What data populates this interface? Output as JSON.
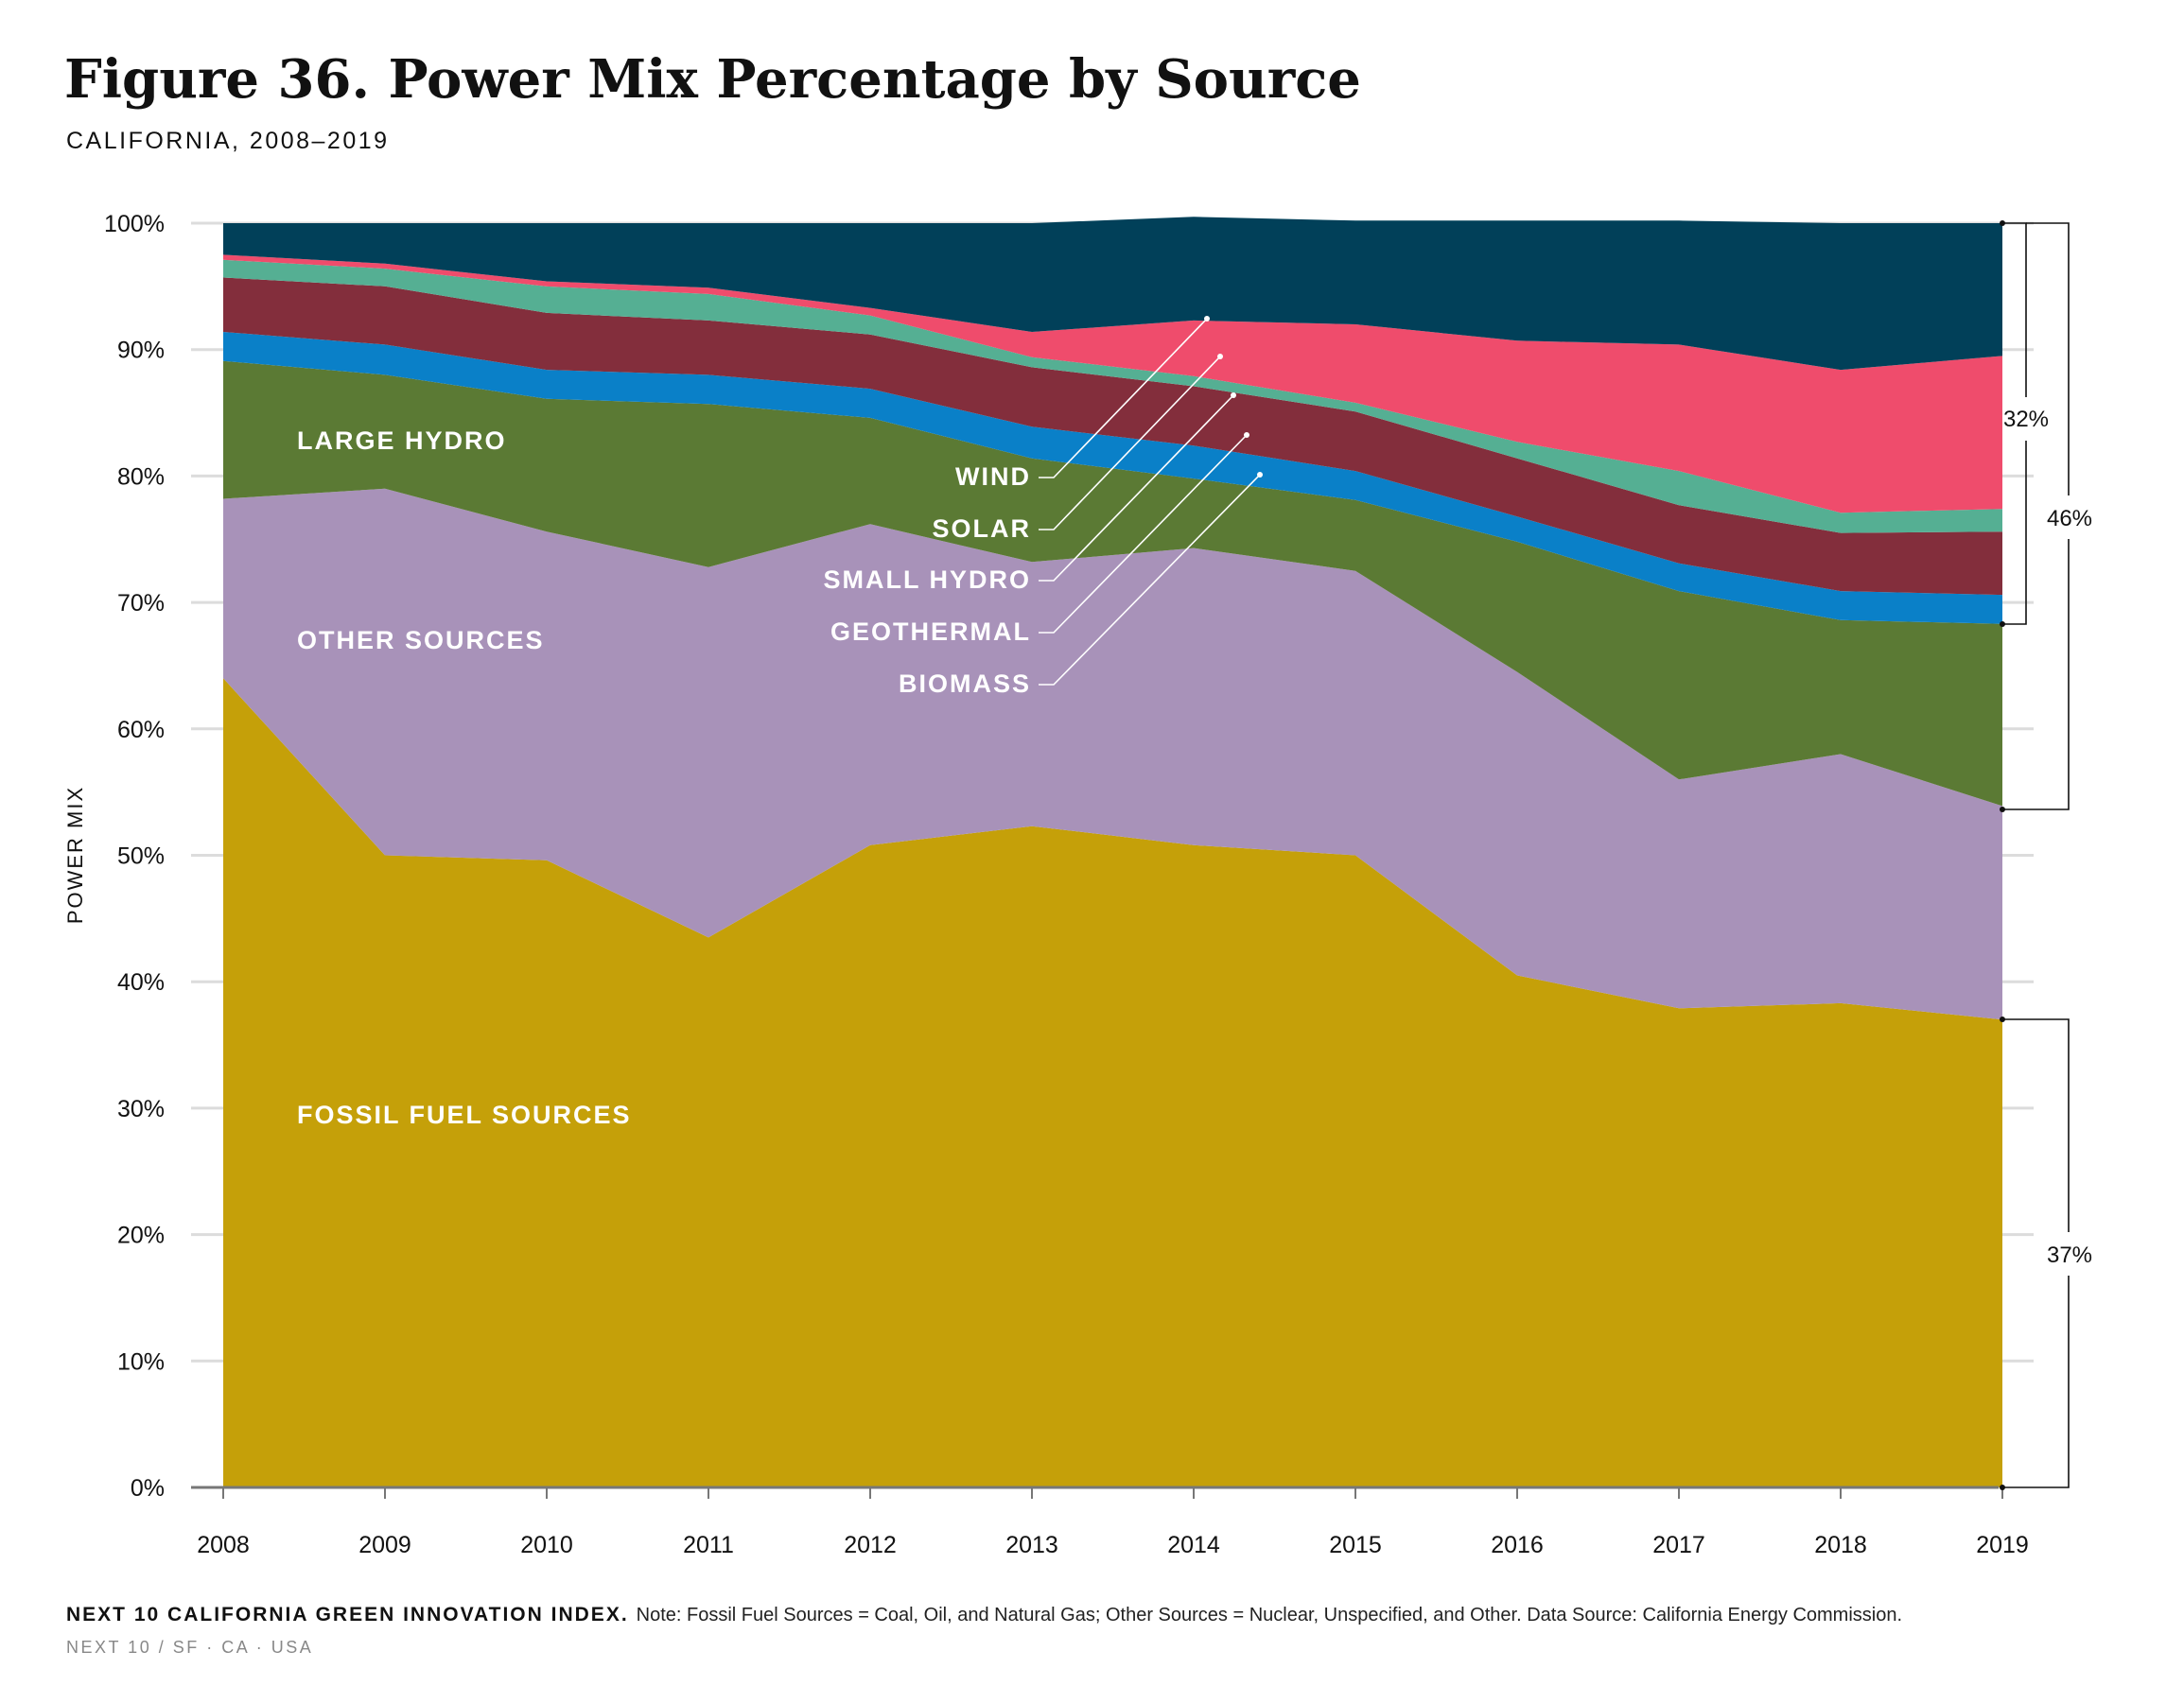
{
  "header": {
    "title": "Figure 36. Power Mix Percentage by Source",
    "subtitle": "CALIFORNIA, 2008–2019"
  },
  "footer": {
    "source_bold": "NEXT 10 CALIFORNIA GREEN INNOVATION INDEX.",
    "note": "Note: Fossil Fuel Sources = Coal, Oil, and Natural Gas; Other Sources = Nuclear, Unspecified, and Other. Data Source: California Energy Commission.",
    "org": "NEXT 10  /  SF · CA · USA"
  },
  "brackets": {
    "top": "32%",
    "middle": "46%",
    "bottom": "37%"
  },
  "chart_data": {
    "type": "area",
    "stacked": true,
    "ylabel": "POWER MIX",
    "xlabel": "",
    "ylim": [
      0,
      100
    ],
    "yticks": [
      "0%",
      "10%",
      "20%",
      "30%",
      "40%",
      "50%",
      "60%",
      "70%",
      "80%",
      "90%",
      "100%"
    ],
    "x": [
      "2008",
      "2009",
      "2010",
      "2011",
      "2012",
      "2013",
      "2014",
      "2015",
      "2016",
      "2017",
      "2018",
      "2019"
    ],
    "grid": "horizontal",
    "series": [
      {
        "name": "FOSSIL FUEL SOURCES",
        "color": "#c5a009",
        "values": [
          64.0,
          50.0,
          49.6,
          43.5,
          50.8,
          52.3,
          50.8,
          50.0,
          40.5,
          37.9,
          38.3,
          37.0
        ]
      },
      {
        "name": "OTHER SOURCES",
        "color": "#a892b9",
        "values": [
          14.2,
          29.0,
          26.0,
          29.3,
          25.4,
          20.9,
          23.5,
          22.5,
          24.0,
          18.1,
          19.7,
          16.9
        ]
      },
      {
        "name": "LARGE HYDRO",
        "color": "#5b7a34",
        "values": [
          10.9,
          9.0,
          10.5,
          12.9,
          8.4,
          8.2,
          5.5,
          5.6,
          10.3,
          14.9,
          10.6,
          14.4
        ]
      },
      {
        "name": "BIOMASS",
        "color": "#0a80c8",
        "values": [
          2.3,
          2.4,
          2.3,
          2.3,
          2.3,
          2.5,
          2.6,
          2.3,
          2.0,
          2.2,
          2.3,
          2.3
        ]
      },
      {
        "name": "GEOTHERMAL",
        "color": "#832e3c",
        "values": [
          4.3,
          4.6,
          4.5,
          4.3,
          4.3,
          4.7,
          4.7,
          4.7,
          4.6,
          4.6,
          4.6,
          5.0
        ]
      },
      {
        "name": "SMALL HYDRO",
        "color": "#55af93",
        "values": [
          1.4,
          1.4,
          2.1,
          2.1,
          1.5,
          0.8,
          0.8,
          0.7,
          1.3,
          2.7,
          1.6,
          1.8
        ]
      },
      {
        "name": "SOLAR",
        "color": "#ef4c6c",
        "values": [
          0.4,
          0.4,
          0.4,
          0.5,
          0.6,
          2.0,
          4.4,
          6.2,
          8.0,
          10.0,
          11.3,
          12.1
        ]
      },
      {
        "name": "WIND",
        "color": "#014059",
        "values": [
          2.5,
          3.2,
          4.6,
          5.1,
          6.7,
          8.6,
          8.2,
          8.2,
          9.5,
          9.8,
          11.6,
          10.5
        ]
      }
    ]
  }
}
